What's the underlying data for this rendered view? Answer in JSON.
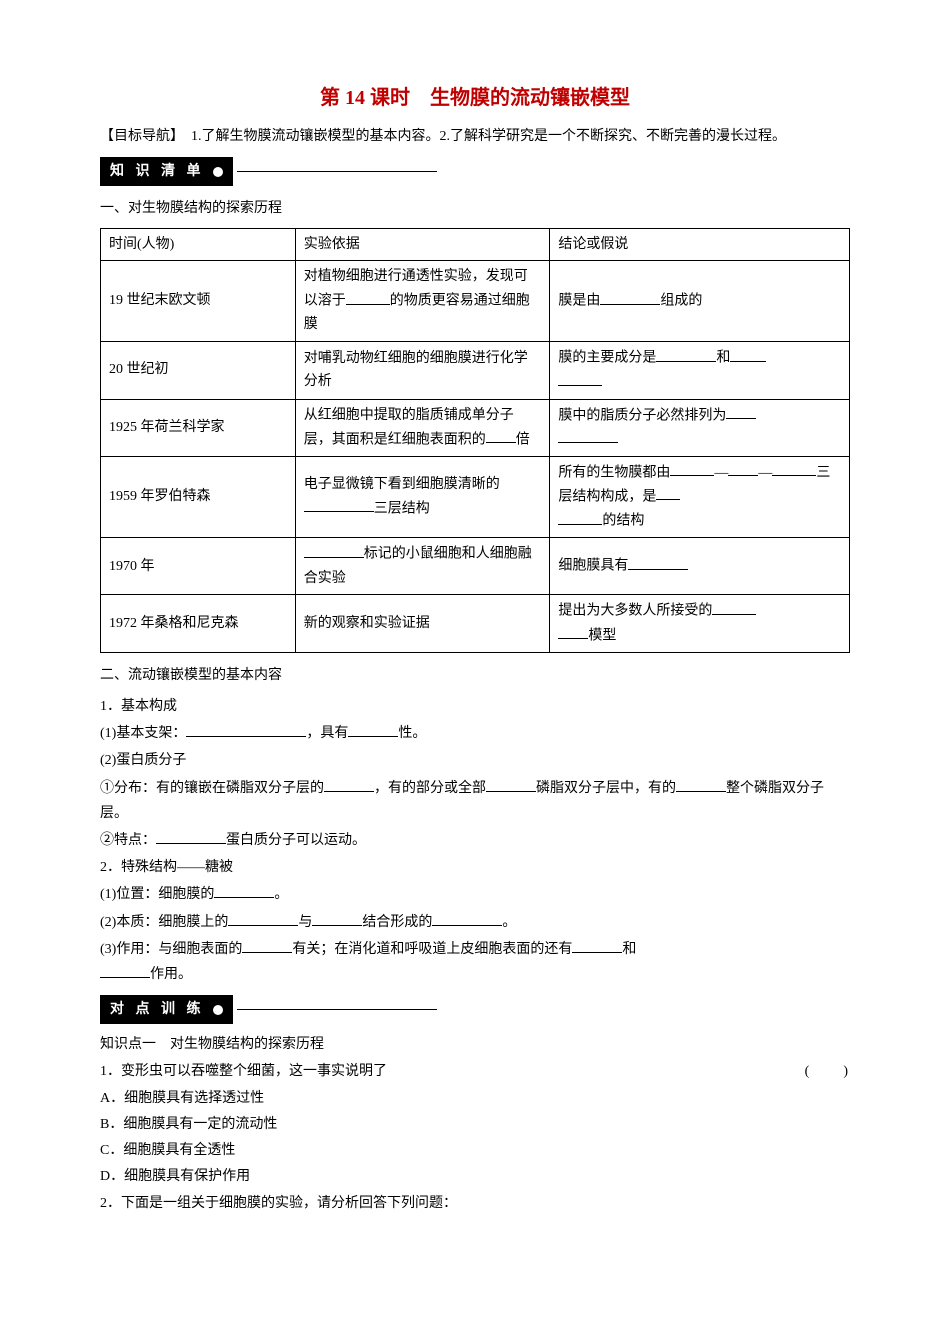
{
  "title": "第 14 课时　生物膜的流动镶嵌模型",
  "objective": "【目标导航】　1.了解生物膜流动镶嵌模型的基本内容。2.了解科学研究是一个不断探究、不断完善的漫长过程。",
  "section1_badge": "知 识 清 单",
  "section2_badge": "对 点 训 练",
  "sub1_title": "一、对生物膜结构的探索历程",
  "table_headers": {
    "time": "时间(人物)",
    "evidence": "实验依据",
    "conclusion": "结论或假说"
  },
  "table_rows": [
    {
      "time": "19 世纪末欧文顿",
      "evidence_pre": "对植物细胞进行通透性实验，发现可以溶于",
      "evidence_post": "的物质更容易通过细胞膜",
      "conclusion_pre": "膜是由",
      "conclusion_post": "组成的"
    },
    {
      "time": "20 世纪初",
      "evidence": "对哺乳动物红细胞的细胞膜进行化学分析",
      "conclusion_pre": "膜的主要成分是",
      "conclusion_mid": "和"
    },
    {
      "time": "1925 年荷兰科学家",
      "evidence_pre": "从红细胞中提取的脂质铺成单分子层，其面积是红细胞表面积的",
      "evidence_post": "倍",
      "conclusion_pre": "膜中的脂质分子必然排列为"
    },
    {
      "time": "1959 年罗伯特森",
      "evidence_pre": "电子显微镜下看到细胞膜清晰的",
      "evidence_post": "三层结构",
      "conclusion_pre": "所有的生物膜都由",
      "conclusion_mid1": "—",
      "conclusion_mid2": "—",
      "conclusion_mid3": "三层结构构成，是",
      "conclusion_post": "的结构"
    },
    {
      "time": "1970 年",
      "evidence_post": "标记的小鼠细胞和人细胞融合实验",
      "conclusion_pre": "细胞膜具有"
    },
    {
      "time": "1972 年桑格和尼克森",
      "evidence": "新的观察和实验证据",
      "conclusion_pre": "提出为大多数人所接受的",
      "conclusion_post": "模型"
    }
  ],
  "sub2_title": "二、流动镶嵌模型的基本内容",
  "content2": {
    "item1_title": "1．基本构成",
    "item1_1_pre": "(1)基本支架：",
    "item1_1_mid": "，具有",
    "item1_1_post": "性。",
    "item1_2": "(2)蛋白质分子",
    "item1_2_1_pre": "①分布：有的镶嵌在磷脂双分子层的",
    "item1_2_1_mid": "，有的部分或全部",
    "item1_2_1_mid2": "磷脂双分子层中，有的",
    "item1_2_1_post": "整个磷脂双分子层。",
    "item1_2_2_pre": "②特点：",
    "item1_2_2_post": "蛋白质分子可以运动。",
    "item2_title": "2．特殊结构——糖被",
    "item2_1_pre": "(1)位置：细胞膜的",
    "item2_1_post": "。",
    "item2_2_pre": "(2)本质：细胞膜上的",
    "item2_2_mid1": "与",
    "item2_2_mid2": "结合形成的",
    "item2_2_post": "。",
    "item2_3_pre": "(3)作用：与细胞表面的",
    "item2_3_mid": "有关；在消化道和呼吸道上皮细胞表面的还有",
    "item2_3_mid2": "和",
    "item2_3_post": "作用。"
  },
  "practice": {
    "kp1_title": "知识点一　对生物膜结构的探索历程",
    "q1": "1．变形虫可以吞噬整个细菌，这一事实说明了",
    "q1_paren": "(　　)",
    "q1_a": "A．细胞膜具有选择透过性",
    "q1_b": "B．细胞膜具有一定的流动性",
    "q1_c": "C．细胞膜具有全透性",
    "q1_d": "D．细胞膜具有保护作用",
    "q2": "2．下面是一组关于细胞膜的实验，请分析回答下列问题："
  },
  "colors": {
    "title": "#c00000",
    "text": "#000000",
    "background": "#ffffff",
    "badge_bg": "#000000",
    "badge_text": "#ffffff"
  }
}
